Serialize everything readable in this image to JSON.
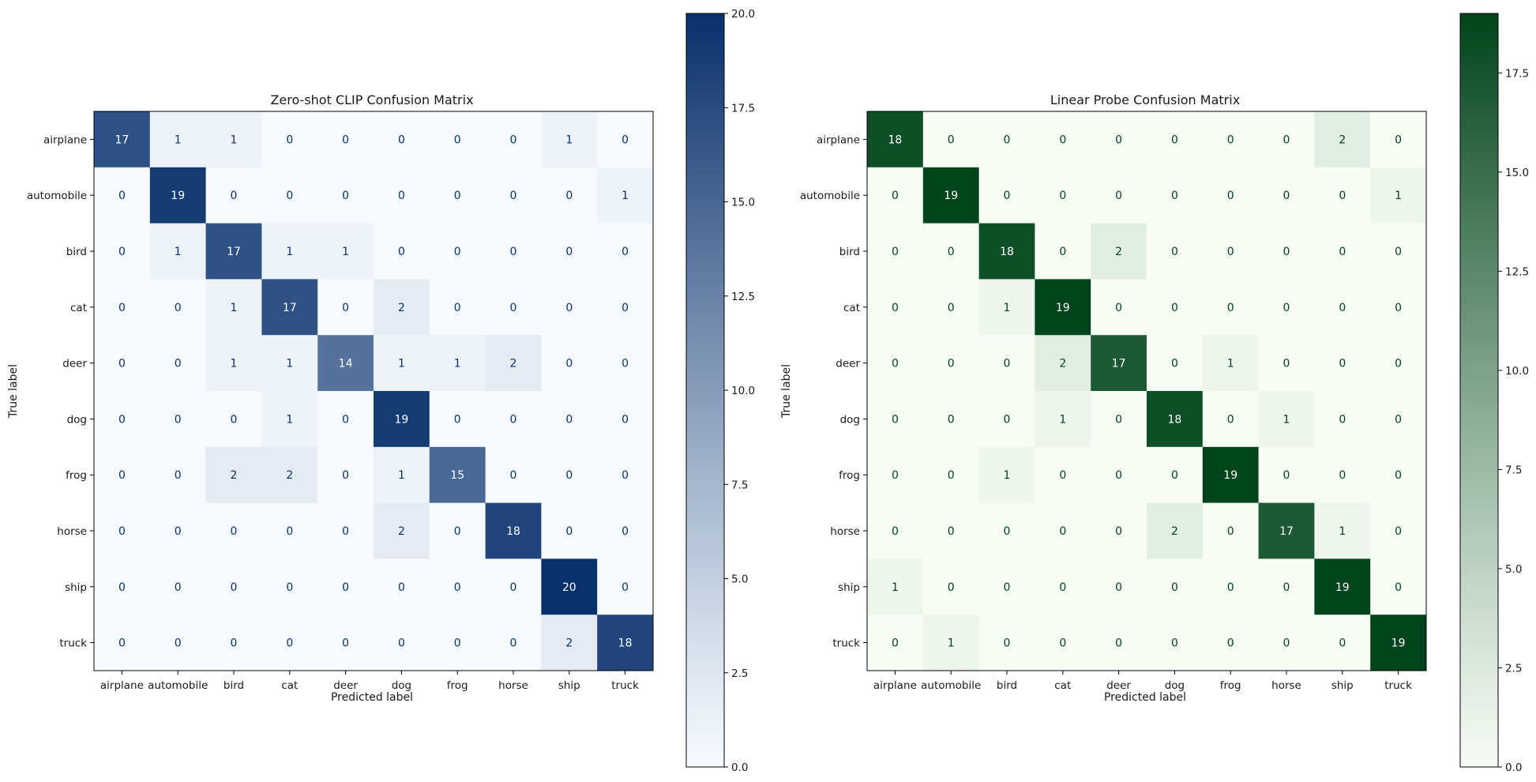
{
  "chart_data": [
    {
      "type": "heatmap",
      "title": "Zero-shot CLIP Confusion Matrix",
      "xlabel": "Predicted label",
      "ylabel": "True label",
      "x_categories": [
        "airplane",
        "automobile",
        "bird",
        "cat",
        "deer",
        "dog",
        "frog",
        "horse",
        "ship",
        "truck"
      ],
      "y_categories": [
        "airplane",
        "automobile",
        "bird",
        "cat",
        "deer",
        "dog",
        "frog",
        "horse",
        "ship",
        "truck"
      ],
      "matrix": [
        [
          17,
          1,
          1,
          0,
          0,
          0,
          0,
          0,
          1,
          0
        ],
        [
          0,
          19,
          0,
          0,
          0,
          0,
          0,
          0,
          0,
          1
        ],
        [
          0,
          1,
          17,
          1,
          1,
          0,
          0,
          0,
          0,
          0
        ],
        [
          0,
          0,
          1,
          17,
          0,
          2,
          0,
          0,
          0,
          0
        ],
        [
          0,
          0,
          1,
          1,
          14,
          1,
          1,
          2,
          0,
          0
        ],
        [
          0,
          0,
          0,
          1,
          0,
          19,
          0,
          0,
          0,
          0
        ],
        [
          0,
          0,
          2,
          2,
          0,
          1,
          15,
          0,
          0,
          0
        ],
        [
          0,
          0,
          0,
          0,
          0,
          2,
          0,
          18,
          0,
          0
        ],
        [
          0,
          0,
          0,
          0,
          0,
          0,
          0,
          0,
          20,
          0
        ],
        [
          0,
          0,
          0,
          0,
          0,
          0,
          0,
          0,
          2,
          18
        ]
      ],
      "colormap": "Blues",
      "colormap_low": "#f7fbff",
      "colormap_high": "#08306b",
      "colorbar_range": [
        0,
        20
      ],
      "colorbar_ticks": [
        "0.0",
        "2.5",
        "5.0",
        "7.5",
        "10.0",
        "12.5",
        "15.0",
        "17.5",
        "20.0"
      ],
      "grid": false
    },
    {
      "type": "heatmap",
      "title": "Linear Probe Confusion Matrix",
      "xlabel": "Predicted label",
      "ylabel": "True label",
      "x_categories": [
        "airplane",
        "automobile",
        "bird",
        "cat",
        "deer",
        "dog",
        "frog",
        "horse",
        "ship",
        "truck"
      ],
      "y_categories": [
        "airplane",
        "automobile",
        "bird",
        "cat",
        "deer",
        "dog",
        "frog",
        "horse",
        "ship",
        "truck"
      ],
      "matrix": [
        [
          18,
          0,
          0,
          0,
          0,
          0,
          0,
          0,
          2,
          0
        ],
        [
          0,
          19,
          0,
          0,
          0,
          0,
          0,
          0,
          0,
          1
        ],
        [
          0,
          0,
          18,
          0,
          2,
          0,
          0,
          0,
          0,
          0
        ],
        [
          0,
          0,
          1,
          19,
          0,
          0,
          0,
          0,
          0,
          0
        ],
        [
          0,
          0,
          0,
          2,
          17,
          0,
          1,
          0,
          0,
          0
        ],
        [
          0,
          0,
          0,
          1,
          0,
          18,
          0,
          1,
          0,
          0
        ],
        [
          0,
          0,
          1,
          0,
          0,
          0,
          19,
          0,
          0,
          0
        ],
        [
          0,
          0,
          0,
          0,
          0,
          2,
          0,
          17,
          1,
          0
        ],
        [
          1,
          0,
          0,
          0,
          0,
          0,
          0,
          0,
          19,
          0
        ],
        [
          0,
          1,
          0,
          0,
          0,
          0,
          0,
          0,
          0,
          19
        ]
      ],
      "colormap": "Greens",
      "colormap_low": "#f7fcf5",
      "colormap_high": "#00441b",
      "colorbar_range": [
        0,
        19
      ],
      "colorbar_ticks": [
        "0.0",
        "2.5",
        "5.0",
        "7.5",
        "10.0",
        "12.5",
        "15.0",
        "17.5"
      ],
      "grid": false
    }
  ]
}
